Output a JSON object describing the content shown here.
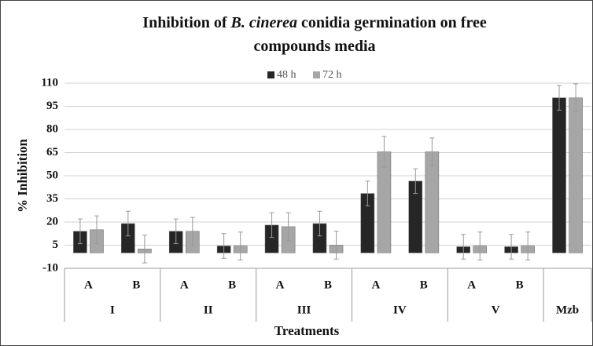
{
  "chart_data": {
    "type": "bar",
    "title": [
      "Inhibition of ",
      "B. cinerea",
      " conidia germination on free",
      "compounds media"
    ],
    "xlabel": "Treatments",
    "ylabel": "% Inhibition",
    "groups": [
      {
        "name": "I",
        "categories": [
          "A",
          "B"
        ]
      },
      {
        "name": "II",
        "categories": [
          "A",
          "B"
        ]
      },
      {
        "name": "III",
        "categories": [
          "A",
          "B"
        ]
      },
      {
        "name": "IV",
        "categories": [
          "A",
          "B"
        ]
      },
      {
        "name": "V",
        "categories": [
          "A",
          "B"
        ]
      },
      {
        "name": "Mzb",
        "categories": [
          null
        ]
      }
    ],
    "series": [
      {
        "name": "48 h",
        "color": "#262626",
        "values": [
          14,
          19,
          14,
          4.5,
          18,
          19,
          38.5,
          46.5,
          4,
          4,
          100.5
        ],
        "errors": [
          8,
          8,
          8,
          8,
          8,
          8,
          8,
          8,
          8,
          8,
          8
        ]
      },
      {
        "name": "72 h",
        "color": "#a6a6a6",
        "values": [
          15,
          2.5,
          14,
          4.5,
          17,
          5,
          65.5,
          65.5,
          4.5,
          4.5,
          100.5
        ],
        "errors": [
          9,
          9,
          9,
          9,
          9,
          9,
          10,
          9,
          9,
          9,
          9
        ]
      }
    ],
    "ylim": [
      -10,
      110
    ],
    "yticks": [
      -10,
      5,
      20,
      35,
      50,
      65,
      80,
      95,
      110
    ],
    "grid": true,
    "legend": "top"
  }
}
